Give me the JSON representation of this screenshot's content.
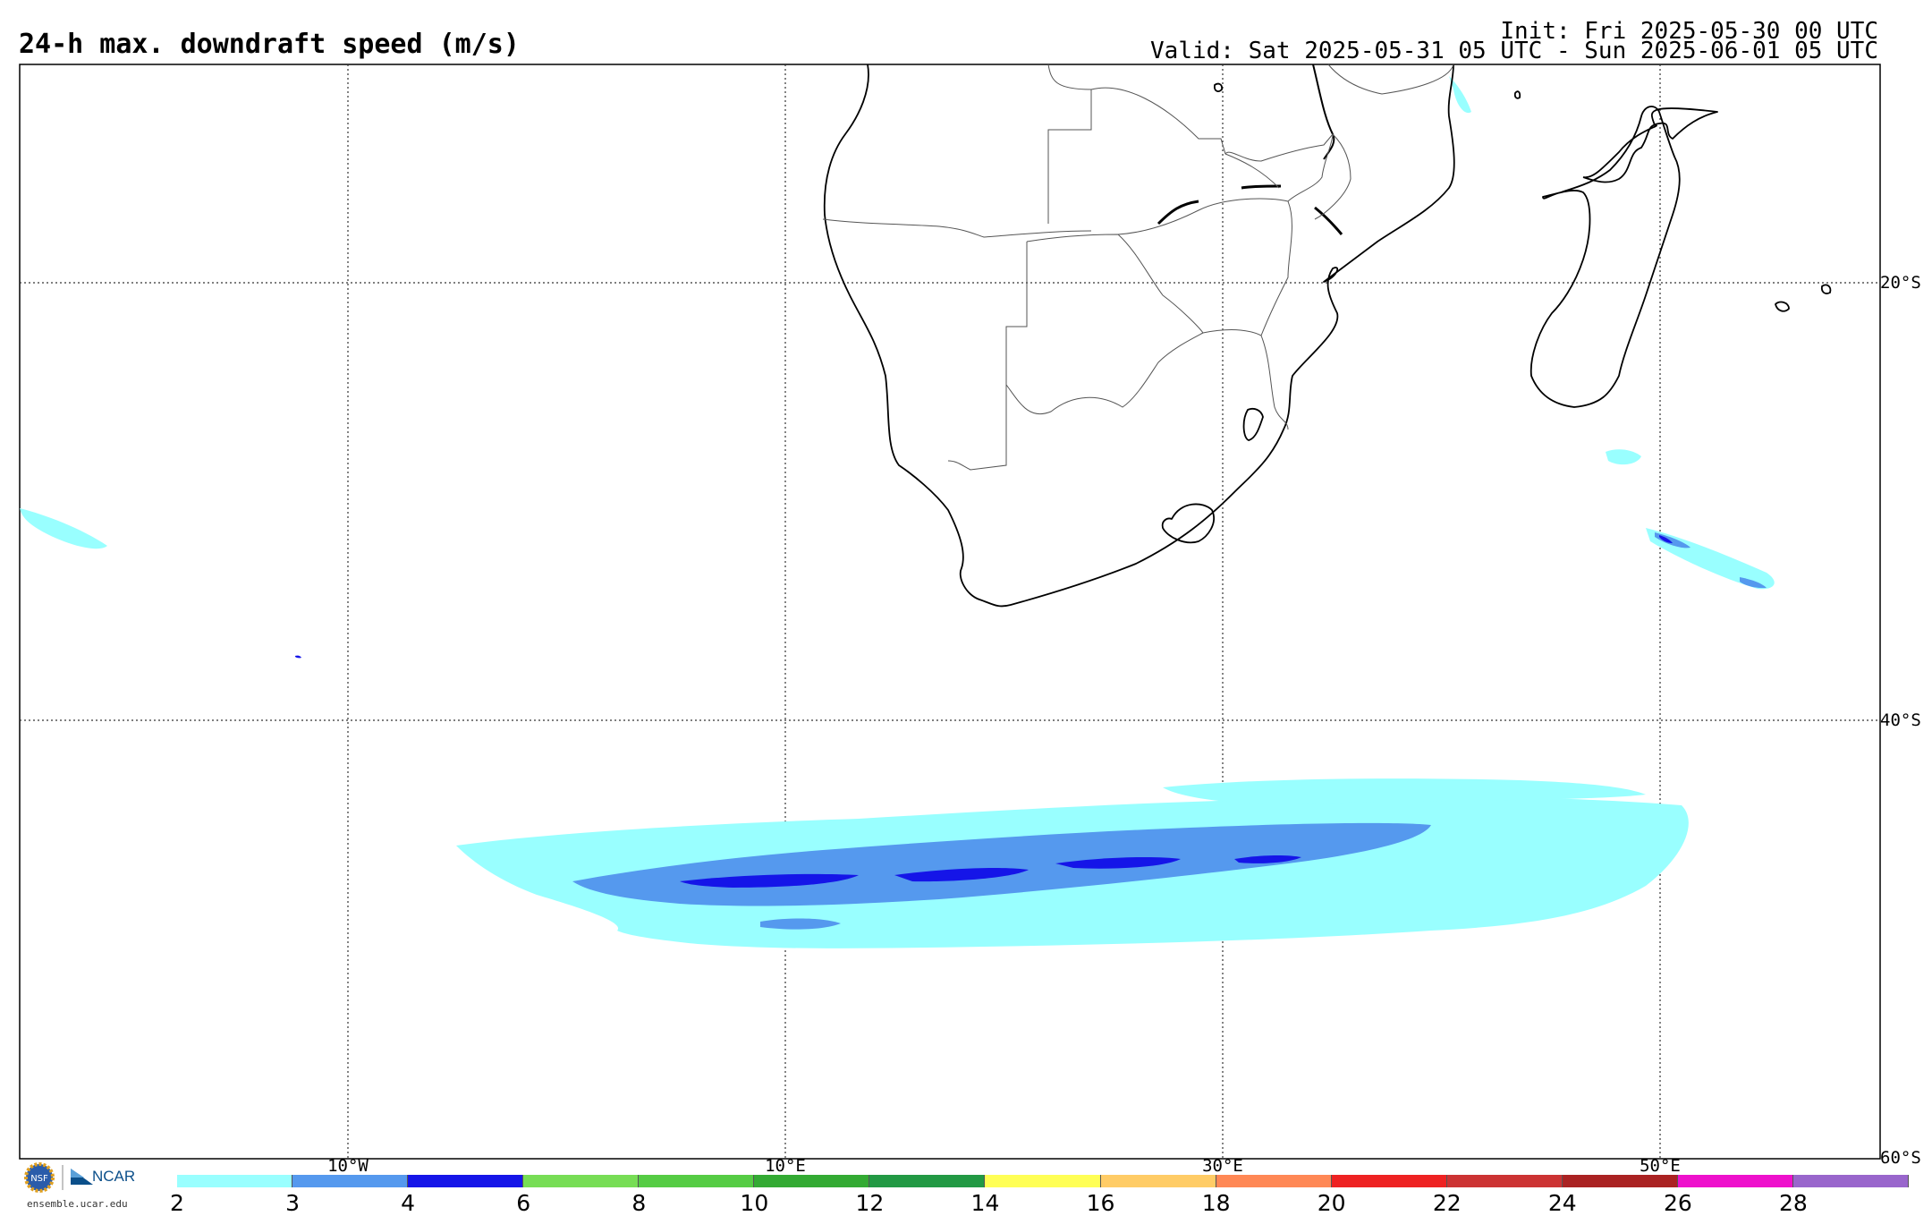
{
  "title": "24-h max. downdraft speed (m/s)",
  "init_label": "Init: Fri 2025-05-30 00 UTC",
  "valid_label": "Valid: Sat 2025-05-31 05 UTC - Sun 2025-06-01 05 UTC",
  "longitude_labels": [
    "10°W",
    "10°E",
    "30°E",
    "50°E"
  ],
  "latitude_labels": [
    "20°S",
    "40°S",
    "60°S"
  ],
  "colorbar": {
    "ticks": [
      "2",
      "3",
      "4",
      "6",
      "8",
      "10",
      "12",
      "14",
      "16",
      "18",
      "20",
      "22",
      "24",
      "26",
      "28"
    ],
    "colors": [
      "#99ffff",
      "#5599ee",
      "#1515e8",
      "#77dd55",
      "#55cc44",
      "#33aa33",
      "#229944",
      "#ffff55",
      "#ffcc66",
      "#ff8855",
      "#ee2222",
      "#cc3333",
      "#aa2222",
      "#ee11cc",
      "#9966cc"
    ]
  },
  "logo": {
    "text": "NCAR",
    "url": "ensemble.ucar.edu",
    "seal": "NSF"
  }
}
